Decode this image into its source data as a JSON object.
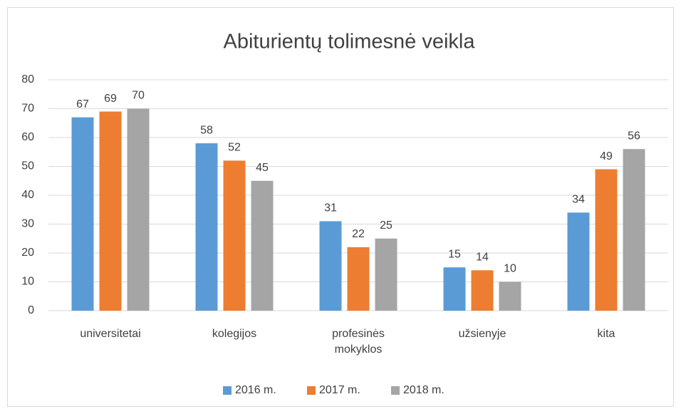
{
  "chart_data": {
    "type": "bar",
    "title": "Abiturientų tolimesnė veikla",
    "categories": [
      "universitetai",
      "kolegijos",
      "profesinės mokyklos",
      "užsienyje",
      "kita"
    ],
    "series": [
      {
        "name": "2016 m.",
        "color": "#5b9bd5",
        "values": [
          67,
          58,
          31,
          15,
          34
        ]
      },
      {
        "name": "2017 m.",
        "color": "#ed7d31",
        "values": [
          69,
          52,
          22,
          14,
          49
        ]
      },
      {
        "name": "2018 m.",
        "color": "#a5a5a5",
        "values": [
          70,
          45,
          25,
          10,
          56
        ]
      }
    ],
    "ylim": [
      0,
      80
    ],
    "yticks": [
      0,
      10,
      20,
      30,
      40,
      50,
      60,
      70,
      80
    ],
    "grid": true,
    "legend": "bottom"
  }
}
